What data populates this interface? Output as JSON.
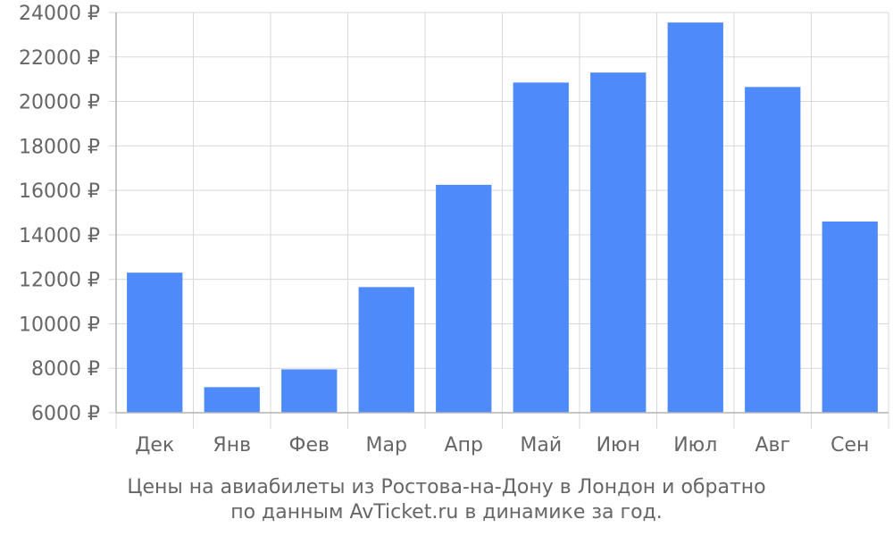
{
  "chart_data": {
    "type": "bar",
    "categories": [
      "Дек",
      "Янв",
      "Фев",
      "Мар",
      "Апр",
      "Май",
      "Июн",
      "Июл",
      "Авг",
      "Сен"
    ],
    "values": [
      12300,
      7150,
      7950,
      11650,
      16250,
      20850,
      21300,
      23550,
      20650,
      14600
    ],
    "ylim": [
      6000,
      24000
    ],
    "yticks": [
      6000,
      8000,
      10000,
      12000,
      14000,
      16000,
      18000,
      20000,
      22000,
      24000
    ],
    "y_tick_suffix": " ₽",
    "bar_color": "#4e8af9",
    "grid": true,
    "caption_lines": [
      "Цены на авиабилеты из Ростова-на-Дону в Лондон и обратно",
      "по данным AvTicket.ru в динамике за год."
    ]
  }
}
